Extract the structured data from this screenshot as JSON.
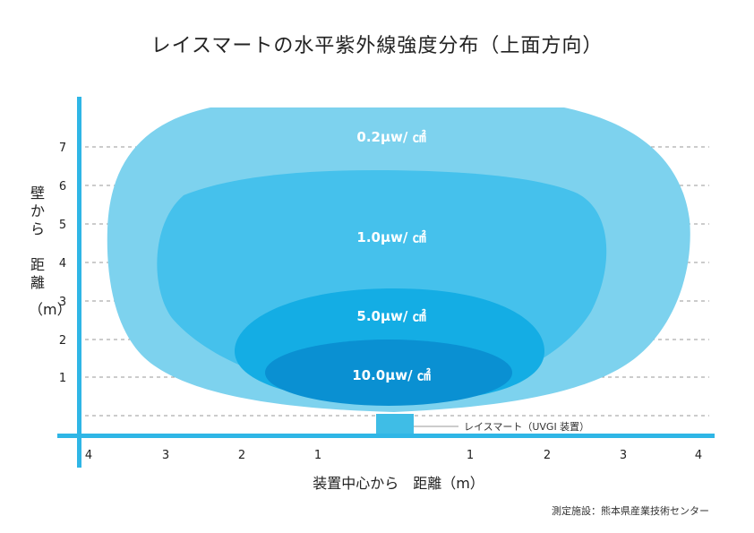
{
  "title": "レイスマートの水平紫外線強度分布（上面方向）",
  "y_axis": {
    "label": [
      "壁から",
      "距離",
      "（m）"
    ],
    "ticks": [
      "1",
      "2",
      "3",
      "4",
      "5",
      "6",
      "7"
    ]
  },
  "x_axis": {
    "label": "装置中心から　距離（m）",
    "ticks": [
      "4",
      "3",
      "2",
      "1",
      "1",
      "2",
      "3",
      "4"
    ]
  },
  "zones": [
    {
      "label": "0.2μw/ ㎠",
      "color": "#7dd2ee"
    },
    {
      "label": "1.0μw/ ㎠",
      "color": "#45c1ec"
    },
    {
      "label": "5.0μw/ ㎠",
      "color": "#14ade4"
    },
    {
      "label": "10.0μw/ ㎠",
      "color": "#0a90d2"
    }
  ],
  "device": {
    "label": "レイスマート（UVGI 装置）",
    "color": "#3fbde6"
  },
  "axis_color": "#2fb6e6",
  "credit": "測定施設：熊本県産業技術センター"
}
